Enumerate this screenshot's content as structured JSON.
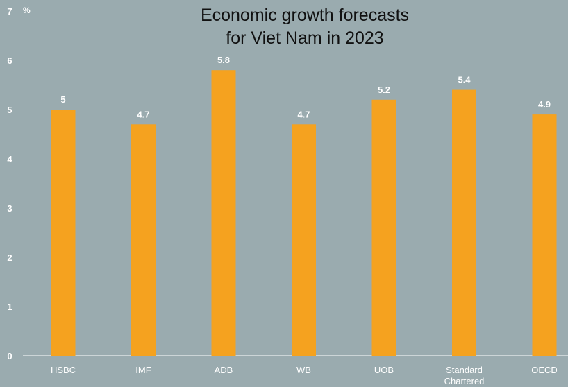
{
  "chart_data": {
    "type": "bar",
    "title_lines": [
      "Economic growth forecasts",
      "for Viet Nam in 2023"
    ],
    "y_unit": "%",
    "categories": [
      "HSBC",
      "IMF",
      "ADB",
      "WB",
      "UOB",
      "Standard Chartered",
      "OECD"
    ],
    "category_lines": [
      [
        "HSBC"
      ],
      [
        "IMF"
      ],
      [
        "ADB"
      ],
      [
        "WB"
      ],
      [
        "UOB"
      ],
      [
        "Standard",
        "Chartered"
      ],
      [
        "OECD"
      ]
    ],
    "values": [
      5,
      4.7,
      5.8,
      4.7,
      5.2,
      5.4,
      4.9
    ],
    "data_labels": [
      "5",
      "4.7",
      "5.8",
      "4.7",
      "5.2",
      "5.4",
      "4.9"
    ],
    "yticks": [
      "0",
      "1",
      "2",
      "3",
      "4",
      "5",
      "6",
      "7"
    ],
    "ylim": [
      0,
      7
    ],
    "grid": false,
    "bar_color": "#f5a21f",
    "background_color": "#9aabaf"
  }
}
